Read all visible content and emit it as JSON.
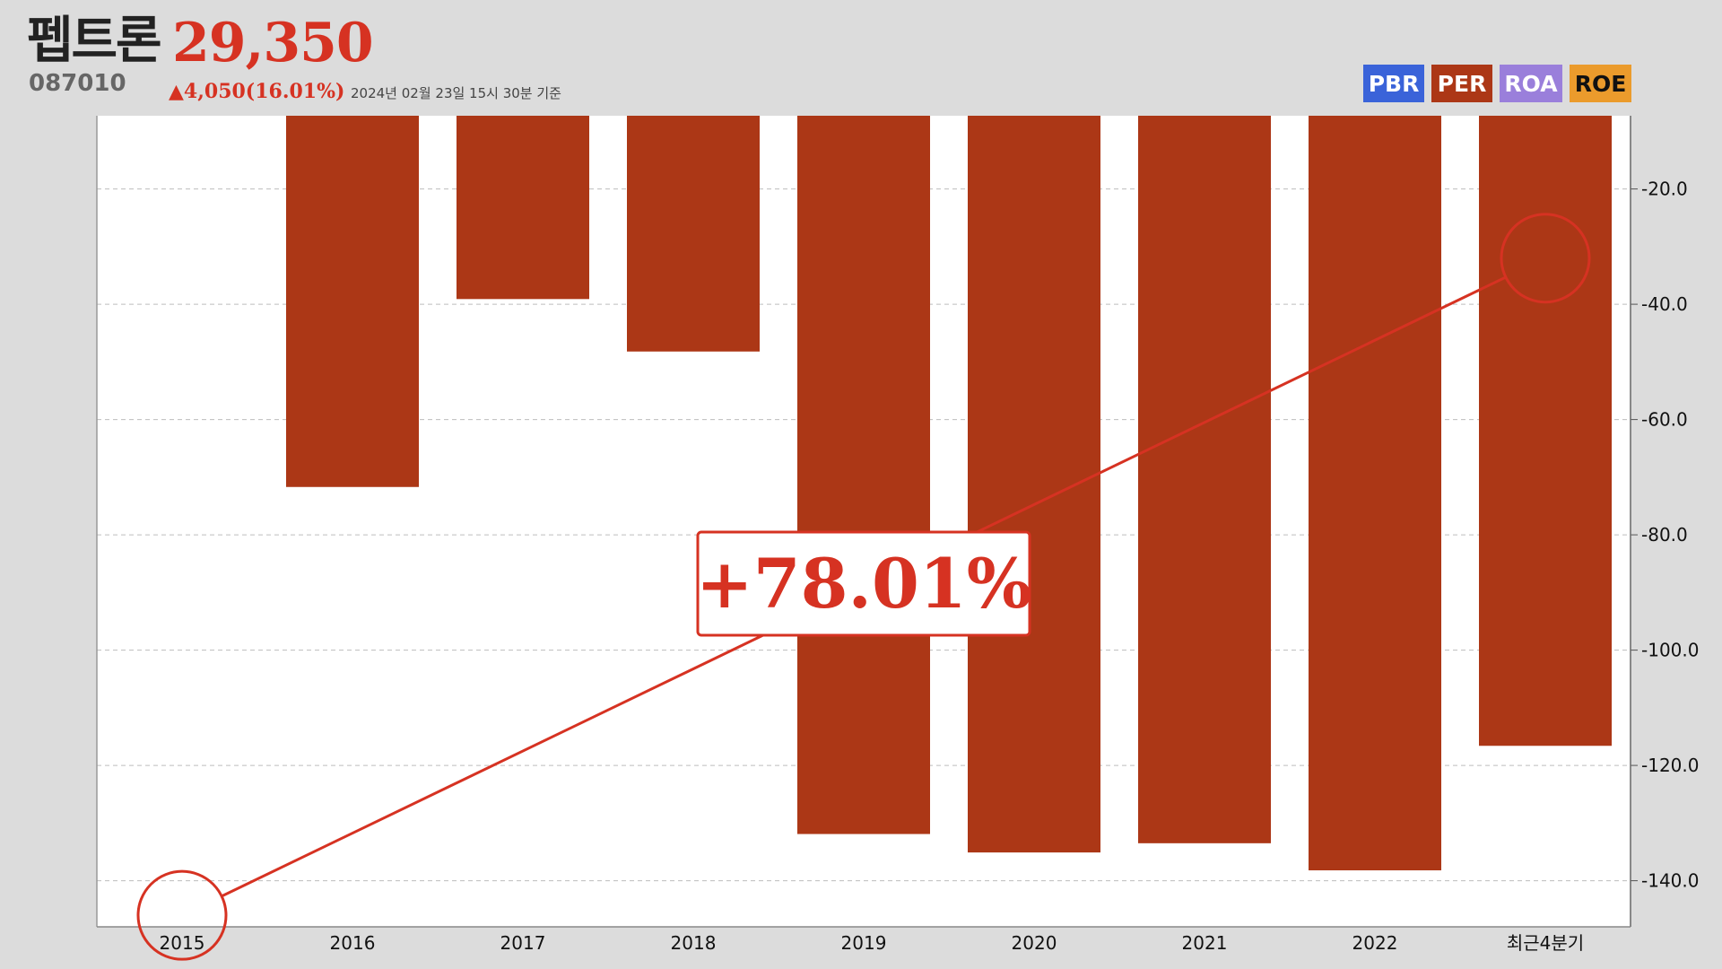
{
  "header": {
    "name": "펩트론",
    "price": "29,350",
    "code": "087010",
    "change": "▲4,050(16.01%)",
    "date": "2024년 02월 23일 15시 30분 기준"
  },
  "tabs": [
    {
      "label": "PBR",
      "color": "#3a63d9"
    },
    {
      "label": "PER",
      "color": "#ac3716"
    },
    {
      "label": "ROA",
      "color": "#9a7fdb"
    },
    {
      "label": "ROE",
      "color": "#eb9b2c"
    }
  ],
  "annotation": {
    "label": "+78.01%",
    "from_category": "2015",
    "to_category": "최근4분기",
    "from_value": -146,
    "to_value": -32,
    "color": "#d63222"
  },
  "chart_data": {
    "type": "bar",
    "categories": [
      "2015",
      "2016",
      "2017",
      "2018",
      "2019",
      "2020",
      "2021",
      "2022",
      "최근4분기"
    ],
    "values": [
      null,
      -71.7,
      -39.1,
      -48.2,
      -131.9,
      -135.1,
      -133.5,
      -138.2,
      -116.6
    ],
    "yticks": [
      -20.0,
      -40.0,
      -60.0,
      -80.0,
      -100.0,
      -120.0,
      -140.0
    ],
    "ytick_labels": [
      "-20.0",
      "-40.0",
      "-60.0",
      "-80.0",
      "-100.0",
      "-120.0",
      "-140.0"
    ],
    "ylim": [
      -7.3,
      -148
    ],
    "y_axis_position": "right",
    "grid": true,
    "bar_color": "#ac3716"
  }
}
